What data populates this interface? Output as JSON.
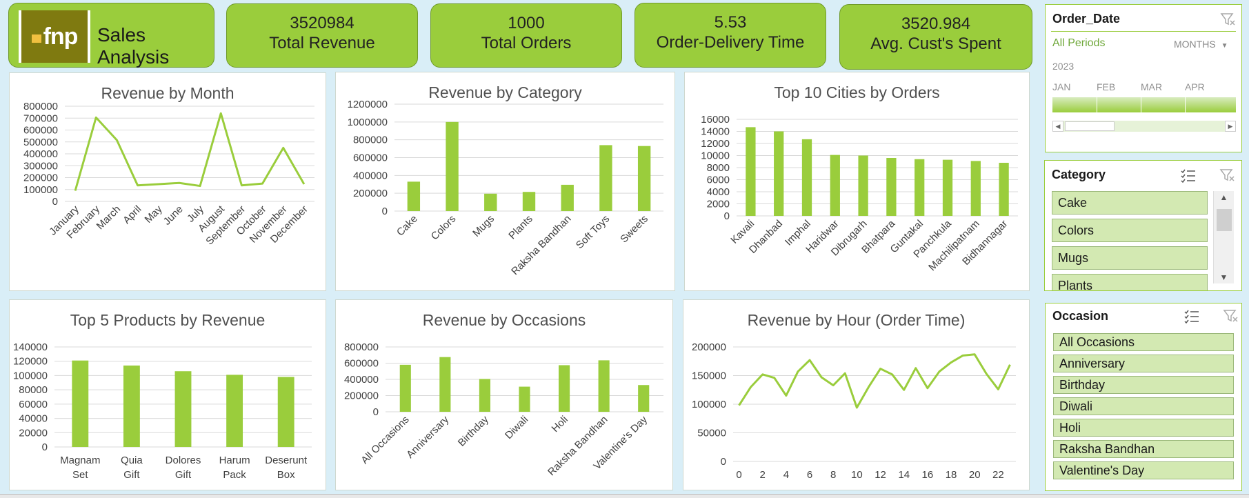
{
  "header": {
    "logo_text": "fnp",
    "title": "Sales Analysis"
  },
  "kpis": [
    {
      "value": "3520984",
      "label": "Total Revenue"
    },
    {
      "value": "1000",
      "label": "Total Orders"
    },
    {
      "value": "5.53",
      "label": "Order-Delivery Time"
    },
    {
      "value": "3520.984",
      "label": "Avg.  Cust's Spent"
    }
  ],
  "charts": {
    "month": {
      "title": "Revenue by Month",
      "chart_data": {
        "type": "line",
        "categories": [
          "January",
          "February",
          "March",
          "April",
          "May",
          "June",
          "July",
          "August",
          "September",
          "October",
          "November",
          "December"
        ],
        "values": [
          90000,
          705000,
          515000,
          135000,
          145000,
          155000,
          130000,
          740000,
          135000,
          150000,
          450000,
          145000
        ],
        "yticks": [
          "0",
          "100000",
          "200000",
          "300000",
          "400000",
          "500000",
          "600000",
          "700000",
          "800000"
        ],
        "ylim": [
          0,
          800000
        ],
        "color": "#9acd3c"
      }
    },
    "category": {
      "title": "Revenue by Category",
      "chart_data": {
        "type": "bar",
        "categories": [
          "Cake",
          "Colors",
          "Mugs",
          "Plants",
          "Raksha Bandhan",
          "Soft Toys",
          "Sweets"
        ],
        "values": [
          330000,
          1000000,
          195000,
          215000,
          295000,
          740000,
          730000
        ],
        "yticks": [
          "0",
          "200000",
          "400000",
          "600000",
          "800000",
          "1000000",
          "1200000"
        ],
        "ylim": [
          0,
          1200000
        ],
        "color": "#9acd3c"
      }
    },
    "cities": {
      "title": "Top 10 Cities by Orders",
      "chart_data": {
        "type": "bar",
        "categories": [
          "Kavali",
          "Dhanbad",
          "Imphal",
          "Haridwar",
          "Dibrugarh",
          "Bhatpara",
          "Guntakal",
          "Panchkula",
          "Machilipatnam",
          "Bidhannagar"
        ],
        "values": [
          14700,
          14000,
          12700,
          10100,
          10000,
          9600,
          9400,
          9300,
          9100,
          8800
        ],
        "yticks": [
          "0",
          "2000",
          "4000",
          "6000",
          "8000",
          "10000",
          "12000",
          "14000",
          "16000"
        ],
        "ylim": [
          0,
          16000
        ],
        "color": "#9acd3c"
      }
    },
    "products": {
      "title": "Top 5 Products by Revenue",
      "chart_data": {
        "type": "bar",
        "categories": [
          "Magnam Set",
          "Quia Gift",
          "Dolores Gift",
          "Harum Pack",
          "Deserunt Box"
        ],
        "values": [
          121000,
          114000,
          106000,
          101000,
          98000
        ],
        "yticks": [
          "0",
          "20000",
          "40000",
          "60000",
          "80000",
          "100000",
          "120000",
          "140000"
        ],
        "ylim": [
          0,
          140000
        ],
        "color": "#9acd3c"
      }
    },
    "occasions": {
      "title": "Revenue by Occasions",
      "chart_data": {
        "type": "bar",
        "categories": [
          "All Occasions",
          "Anniversary",
          "Birthday",
          "Diwali",
          "Holi",
          "Raksha Bandhan",
          "Valentine's Day"
        ],
        "values": [
          580000,
          675000,
          405000,
          310000,
          575000,
          635000,
          330000
        ],
        "yticks": [
          "0",
          "200000",
          "400000",
          "600000",
          "800000"
        ],
        "ylim": [
          0,
          800000
        ],
        "color": "#9acd3c"
      }
    },
    "hour": {
      "title": "Revenue by Hour (Order Time)",
      "chart_data": {
        "type": "line",
        "x": [
          0,
          1,
          2,
          3,
          4,
          5,
          6,
          7,
          8,
          9,
          10,
          11,
          12,
          13,
          14,
          15,
          16,
          17,
          18,
          19,
          20,
          21,
          22,
          23
        ],
        "values": [
          98000,
          130000,
          152000,
          146000,
          115000,
          157000,
          177000,
          147000,
          133000,
          154000,
          94000,
          130000,
          162000,
          152000,
          125000,
          163000,
          128000,
          157000,
          173000,
          185000,
          187000,
          153000,
          126000,
          169000
        ],
        "xticks": [
          "0",
          "2",
          "4",
          "6",
          "8",
          "10",
          "12",
          "14",
          "16",
          "18",
          "20",
          "22"
        ],
        "yticks": [
          "0",
          "50000",
          "100000",
          "150000",
          "200000"
        ],
        "ylim": [
          0,
          200000
        ],
        "color": "#9acd3c"
      }
    }
  },
  "slicers": {
    "order_date": {
      "title": "Order_Date",
      "period_label": "All Periods",
      "level": "MONTHS",
      "year": "2023",
      "months": [
        "JAN",
        "FEB",
        "MAR",
        "APR"
      ]
    },
    "category": {
      "title": "Category",
      "items": [
        "Cake",
        "Colors",
        "Mugs",
        "Plants"
      ]
    },
    "occasion": {
      "title": "Occasion",
      "items": [
        "All Occasions",
        "Anniversary",
        "Birthday",
        "Diwali",
        "Holi",
        "Raksha Bandhan",
        "Valentine's Day"
      ]
    }
  },
  "icons": [
    "multi-select-icon",
    "clear-filter-icon",
    "scroll-left-icon",
    "scroll-right-icon",
    "scroll-up-icon",
    "scroll-down-icon"
  ]
}
